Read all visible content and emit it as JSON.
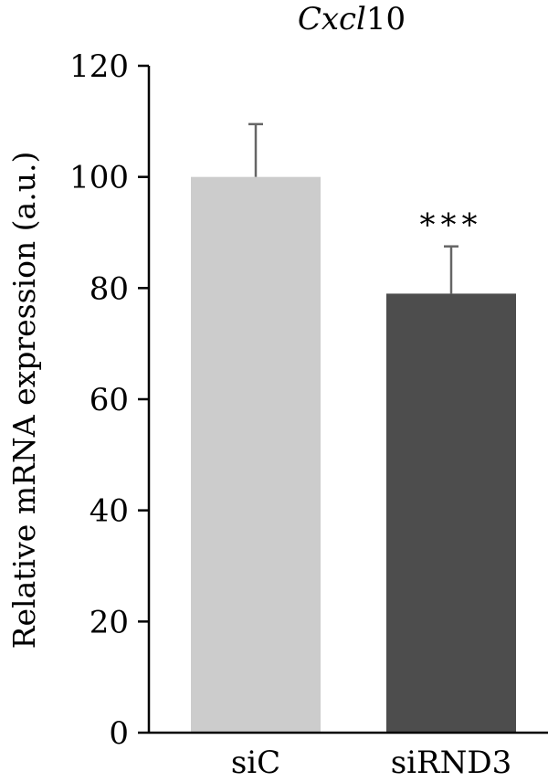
{
  "chart_data": {
    "type": "bar",
    "title_italic": "Cxcl",
    "title_number": "10",
    "ylabel": "Relative mRNA expression (a.u.)",
    "xlabel": "",
    "ylim": [
      0,
      120
    ],
    "yticks": [
      0,
      20,
      40,
      60,
      80,
      100,
      120
    ],
    "grid": false,
    "categories": [
      "siC",
      "siRND3"
    ],
    "values": [
      100,
      79
    ],
    "errors": [
      9.5,
      8.5
    ],
    "colors": [
      "#cccccc",
      "#4d4d4d"
    ],
    "error_color": "#666666",
    "significance": [
      "",
      "***"
    ]
  }
}
